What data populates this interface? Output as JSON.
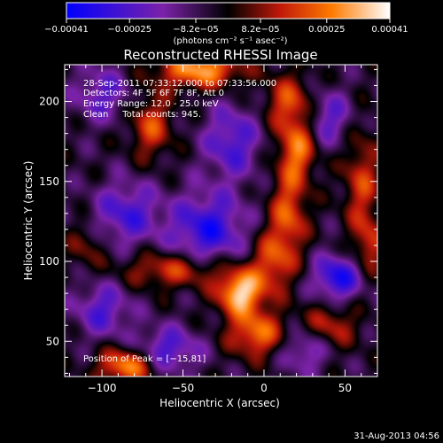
{
  "chart_data": {
    "type": "heatmap",
    "title": "Reconstructed RHESSI Image",
    "xlabel": "Heliocentric X (arcsec)",
    "ylabel": "Heliocentric Y (arcsec)",
    "xlim": [
      -123,
      70
    ],
    "ylim": [
      28,
      223
    ],
    "xticks": [
      -100,
      -50,
      0,
      50
    ],
    "xtick_labels": [
      "−100",
      "−50",
      "0",
      "50"
    ],
    "yticks": [
      50,
      100,
      150,
      200
    ],
    "ytick_labels": [
      "50",
      "100",
      "150",
      "200"
    ],
    "colorbar": {
      "range": [
        -0.00041,
        0.00041
      ],
      "ticks": [
        -0.00041,
        -0.00025,
        -8.2e-05,
        8.2e-05,
        0.00025,
        0.00041
      ],
      "tick_labels": [
        "−0.00041",
        "−0.00025",
        "−8.2e−05",
        "8.2e−05",
        "0.00025",
        "0.00041"
      ],
      "units": "(photons cm⁻² s⁻¹ asec⁻²)",
      "colors": [
        "#0000ff",
        "#7b22a8",
        "#000000",
        "#c0180a",
        "#ff7a00",
        "#ffffff"
      ]
    },
    "annotations": {
      "time": "28-Sep-2011 07:33:12.000 to 07:33:56.000",
      "detectors": "Detectors: 4F 5F 6F 7F 8F, Att 0",
      "energy": "Energy Range: 12.0 - 25.0 keV",
      "method": "Clean     Total counts: 945.",
      "peak": "Position of Peak = [−15,81]"
    },
    "peak": {
      "x": -15,
      "y": 81
    },
    "sources": [
      {
        "x": -15,
        "y": 81,
        "amp": 1.0,
        "sx": 10,
        "sy": 10
      },
      {
        "x": -5,
        "y": 55,
        "amp": 0.7,
        "sx": 12,
        "sy": 10
      },
      {
        "x": 5,
        "y": 100,
        "amp": 0.55,
        "sx": 9,
        "sy": 14
      },
      {
        "x": 15,
        "y": 130,
        "amp": 0.6,
        "sx": 8,
        "sy": 18
      },
      {
        "x": 20,
        "y": 170,
        "amp": 0.7,
        "sx": 8,
        "sy": 14
      },
      {
        "x": 15,
        "y": 200,
        "amp": 0.55,
        "sx": 10,
        "sy": 12
      },
      {
        "x": -40,
        "y": 220,
        "amp": 0.85,
        "sx": 18,
        "sy": 8
      },
      {
        "x": -70,
        "y": 185,
        "amp": 0.55,
        "sx": 9,
        "sy": 14
      },
      {
        "x": -55,
        "y": 95,
        "amp": 0.55,
        "sx": 22,
        "sy": 8
      },
      {
        "x": -85,
        "y": 35,
        "amp": 0.8,
        "sx": 12,
        "sy": 8
      },
      {
        "x": 60,
        "y": 150,
        "amp": 0.5,
        "sx": 8,
        "sy": 22
      },
      {
        "x": 40,
        "y": 60,
        "amp": 0.45,
        "sx": 12,
        "sy": 10
      },
      {
        "x": -110,
        "y": 110,
        "amp": 0.3,
        "sx": 8,
        "sy": 10
      },
      {
        "x": 65,
        "y": 110,
        "amp": 0.45,
        "sx": 7,
        "sy": 12
      },
      {
        "x": -85,
        "y": 130,
        "amp": -0.55,
        "sx": 14,
        "sy": 14
      },
      {
        "x": -35,
        "y": 120,
        "amp": -0.7,
        "sx": 16,
        "sy": 16
      },
      {
        "x": -20,
        "y": 175,
        "amp": -0.55,
        "sx": 12,
        "sy": 16
      },
      {
        "x": 45,
        "y": 90,
        "amp": -0.75,
        "sx": 10,
        "sy": 10
      },
      {
        "x": -100,
        "y": 205,
        "amp": -0.45,
        "sx": 12,
        "sy": 12
      },
      {
        "x": 40,
        "y": 190,
        "amp": -0.45,
        "sx": 10,
        "sy": 12
      },
      {
        "x": -60,
        "y": 45,
        "amp": -0.55,
        "sx": 14,
        "sy": 10
      },
      {
        "x": 25,
        "y": 45,
        "amp": -0.45,
        "sx": 10,
        "sy": 10
      },
      {
        "x": -100,
        "y": 70,
        "amp": -0.5,
        "sx": 12,
        "sy": 12
      }
    ]
  },
  "footer_timestamp": "31-Aug-2013 04:56"
}
